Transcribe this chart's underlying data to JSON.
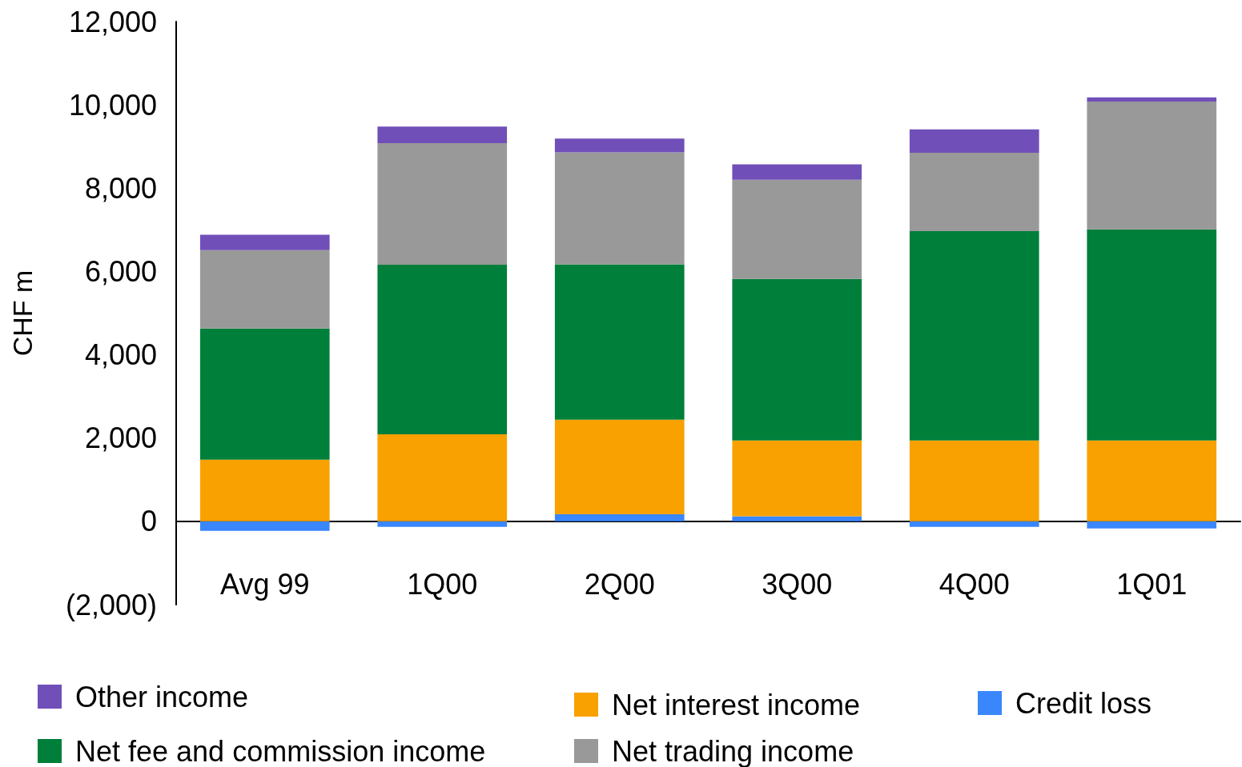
{
  "chart_data": {
    "type": "bar",
    "ylabel": "CHF m",
    "stacked": true,
    "categories": [
      "Avg 99",
      "1Q00",
      "2Q00",
      "3Q00",
      "4Q00",
      "1Q01"
    ],
    "series": [
      {
        "name": "Credit loss",
        "color": "#3a87fd",
        "values": [
          -230,
          -130,
          170,
          120,
          -130,
          -170
        ]
      },
      {
        "name": "Net interest income",
        "color": "#f9a100",
        "values": [
          1480,
          2090,
          2270,
          1820,
          1940,
          1940
        ]
      },
      {
        "name": "Net fee and commission income",
        "color": "#007f3a",
        "values": [
          3150,
          4070,
          3730,
          3880,
          5030,
          5070
        ]
      },
      {
        "name": "Net trading income",
        "color": "#999999",
        "values": [
          1880,
          2920,
          2690,
          2380,
          1880,
          3070
        ]
      },
      {
        "name": "Other income",
        "color": "#714fb9",
        "values": [
          370,
          400,
          330,
          370,
          560,
          100
        ]
      }
    ],
    "ylim": [
      -2000,
      12000
    ],
    "yticks": [
      {
        "value": -2000,
        "label": "(2,000)"
      },
      {
        "value": 0,
        "label": "0"
      },
      {
        "value": 2000,
        "label": "2,000"
      },
      {
        "value": 4000,
        "label": "4,000"
      },
      {
        "value": 6000,
        "label": "6,000"
      },
      {
        "value": 8000,
        "label": "8,000"
      },
      {
        "value": 10000,
        "label": "10,000"
      },
      {
        "value": 12000,
        "label": "12,000"
      }
    ],
    "grid": false,
    "legend": "bottom"
  }
}
